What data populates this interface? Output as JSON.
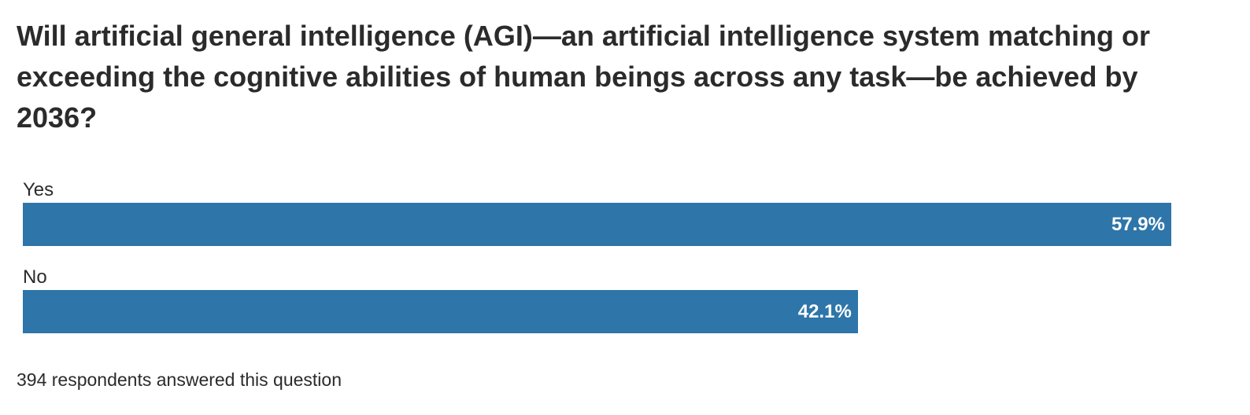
{
  "chart_data": {
    "type": "bar",
    "orientation": "horizontal",
    "title": "Will artificial general intelligence (AGI)—an artificial intelligence system matching or exceeding the cognitive abilities of human beings across any task—be achieved by 2036?",
    "categories": [
      "Yes",
      "No"
    ],
    "values": [
      57.9,
      42.1
    ],
    "value_labels": [
      "57.9%",
      "42.1%"
    ],
    "color": "#2e75a9",
    "note": "394 respondents answered this question"
  }
}
